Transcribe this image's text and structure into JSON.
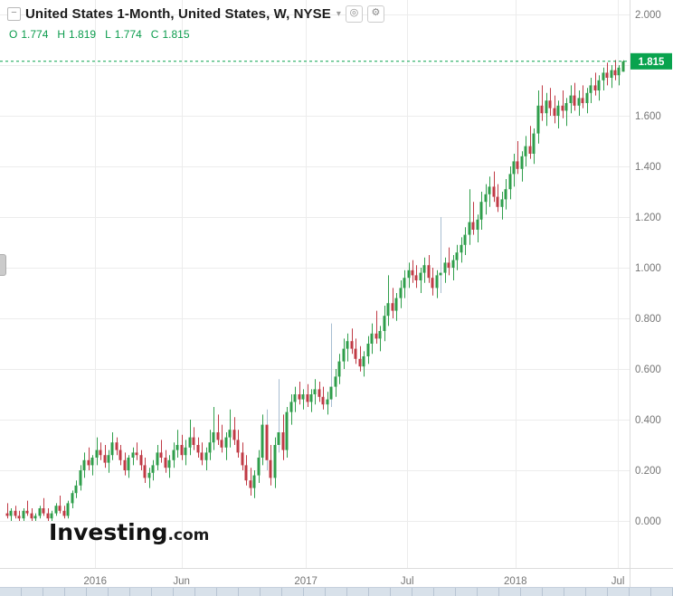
{
  "header": {
    "title": "United States 1-Month, United States, W, NYSE",
    "ohlc_summary": {
      "open_label": "O",
      "open": "1.774",
      "high_label": "H",
      "high": "1.819",
      "low_label": "L",
      "low": "1.774",
      "close_label": "C",
      "close": "1.815"
    }
  },
  "icons": {
    "collapse": "−",
    "dropdown": "▾",
    "visibility": "◎",
    "settings": "⚙"
  },
  "watermark": {
    "brand": "Investing",
    "suffix": ".com"
  },
  "chart_data": {
    "type": "candlestick",
    "symbol": "United States 1-Month",
    "country": "United States",
    "interval": "W",
    "exchange": "NYSE",
    "last_price": 1.815,
    "y_axis": {
      "min": 0.0,
      "max": 2.0,
      "step": 0.2,
      "visible_tick_labels": [
        "2.000",
        "1.600",
        "1.400",
        "1.200",
        "1.000",
        "0.800",
        "0.600",
        "0.400",
        "0.200",
        "0.000"
      ],
      "tick_values": [
        2.0,
        1.6,
        1.4,
        1.2,
        1.0,
        0.8,
        0.6,
        0.4,
        0.2,
        0.0
      ],
      "grid_values": [
        2.0,
        1.8,
        1.6,
        1.4,
        1.2,
        1.0,
        0.8,
        0.6,
        0.4,
        0.2,
        0.0
      ],
      "last_price_label": "1.815"
    },
    "x_axis": {
      "ticks": [
        {
          "label": "2016",
          "index": 21.7
        },
        {
          "label": "Jun",
          "index": 43.0
        },
        {
          "label": "2017",
          "index": 73.7
        },
        {
          "label": "Jul",
          "index": 98.7
        },
        {
          "label": "2018",
          "index": 125.4
        },
        {
          "label": "Jul",
          "index": 150.7
        }
      ]
    },
    "colors": {
      "up": "#2f9e4b",
      "down": "#c03a45",
      "pale_wick": "#a7bdd1",
      "last_price": "#09a34e",
      "grid": "#ececec",
      "axis_text": "#757575",
      "ohlc_text": "#0a9b4c"
    },
    "candles": [
      [
        0.03,
        0.07,
        0.01,
        0.02
      ],
      [
        0.02,
        0.05,
        0.0,
        0.04
      ],
      [
        0.04,
        0.06,
        0.01,
        0.02
      ],
      [
        0.02,
        0.04,
        0.0,
        0.01
      ],
      [
        0.01,
        0.05,
        0.0,
        0.04
      ],
      [
        0.04,
        0.08,
        0.02,
        0.03
      ],
      [
        0.03,
        0.05,
        0.0,
        0.01
      ],
      [
        0.01,
        0.03,
        0.0,
        0.02
      ],
      [
        0.02,
        0.06,
        0.01,
        0.05
      ],
      [
        0.05,
        0.09,
        0.02,
        0.03
      ],
      [
        0.03,
        0.05,
        0.0,
        0.01
      ],
      [
        0.01,
        0.04,
        0.0,
        0.03
      ],
      [
        0.03,
        0.07,
        0.02,
        0.06
      ],
      [
        0.06,
        0.1,
        0.03,
        0.04
      ],
      [
        0.04,
        0.06,
        0.01,
        0.02
      ],
      [
        0.02,
        0.08,
        0.01,
        0.07
      ],
      [
        0.07,
        0.12,
        0.05,
        0.11
      ],
      [
        0.11,
        0.16,
        0.09,
        0.14
      ],
      [
        0.14,
        0.22,
        0.12,
        0.2
      ],
      [
        0.2,
        0.27,
        0.17,
        0.24
      ],
      [
        0.24,
        0.29,
        0.2,
        0.22
      ],
      [
        0.22,
        0.26,
        0.18,
        0.25
      ],
      [
        0.25,
        0.33,
        0.22,
        0.28
      ],
      [
        0.28,
        0.31,
        0.24,
        0.26
      ],
      [
        0.26,
        0.3,
        0.21,
        0.23
      ],
      [
        0.23,
        0.28,
        0.19,
        0.26
      ],
      [
        0.26,
        0.35,
        0.24,
        0.31
      ],
      [
        0.31,
        0.33,
        0.26,
        0.28
      ],
      [
        0.28,
        0.3,
        0.22,
        0.24
      ],
      [
        0.24,
        0.27,
        0.18,
        0.2
      ],
      [
        0.2,
        0.26,
        0.17,
        0.25
      ],
      [
        0.25,
        0.29,
        0.22,
        0.27
      ],
      [
        0.27,
        0.31,
        0.24,
        0.26
      ],
      [
        0.26,
        0.28,
        0.2,
        0.22
      ],
      [
        0.22,
        0.25,
        0.15,
        0.17
      ],
      [
        0.17,
        0.21,
        0.13,
        0.19
      ],
      [
        0.19,
        0.24,
        0.16,
        0.22
      ],
      [
        0.22,
        0.3,
        0.2,
        0.27
      ],
      [
        0.27,
        0.32,
        0.23,
        0.25
      ],
      [
        0.25,
        0.28,
        0.19,
        0.21
      ],
      [
        0.21,
        0.26,
        0.17,
        0.24
      ],
      [
        0.24,
        0.31,
        0.21,
        0.28
      ],
      [
        0.28,
        0.36,
        0.25,
        0.3
      ],
      [
        0.3,
        0.34,
        0.24,
        0.26
      ],
      [
        0.26,
        0.32,
        0.22,
        0.29
      ],
      [
        0.29,
        0.4,
        0.26,
        0.33
      ],
      [
        0.33,
        0.37,
        0.28,
        0.3
      ],
      [
        0.3,
        0.33,
        0.25,
        0.27
      ],
      [
        0.27,
        0.31,
        0.22,
        0.24
      ],
      [
        0.24,
        0.29,
        0.2,
        0.27
      ],
      [
        0.27,
        0.36,
        0.24,
        0.31
      ],
      [
        0.31,
        0.45,
        0.28,
        0.35
      ],
      [
        0.35,
        0.42,
        0.3,
        0.32
      ],
      [
        0.32,
        0.38,
        0.27,
        0.29
      ],
      [
        0.29,
        0.35,
        0.24,
        0.33
      ],
      [
        0.33,
        0.44,
        0.29,
        0.36
      ],
      [
        0.36,
        0.41,
        0.3,
        0.32
      ],
      [
        0.32,
        0.36,
        0.25,
        0.27
      ],
      [
        0.27,
        0.31,
        0.2,
        0.22
      ],
      [
        0.22,
        0.26,
        0.14,
        0.16
      ],
      [
        0.16,
        0.21,
        0.1,
        0.13
      ],
      [
        0.13,
        0.2,
        0.09,
        0.18
      ],
      [
        0.18,
        0.28,
        0.15,
        0.25
      ],
      [
        0.25,
        0.42,
        0.22,
        0.38
      ],
      [
        0.38,
        0.44,
        0.2,
        0.24
      ],
      [
        0.24,
        0.3,
        0.14,
        0.17
      ],
      [
        0.17,
        0.33,
        0.13,
        0.3
      ],
      [
        0.3,
        0.56,
        0.27,
        0.35
      ],
      [
        0.35,
        0.42,
        0.24,
        0.28
      ],
      [
        0.28,
        0.45,
        0.25,
        0.43
      ],
      [
        0.43,
        0.5,
        0.38,
        0.47
      ],
      [
        0.47,
        0.53,
        0.43,
        0.5
      ],
      [
        0.5,
        0.55,
        0.46,
        0.48
      ],
      [
        0.48,
        0.52,
        0.44,
        0.5
      ],
      [
        0.5,
        0.54,
        0.45,
        0.47
      ],
      [
        0.47,
        0.52,
        0.43,
        0.5
      ],
      [
        0.5,
        0.56,
        0.46,
        0.52
      ],
      [
        0.52,
        0.55,
        0.47,
        0.49
      ],
      [
        0.49,
        0.53,
        0.44,
        0.46
      ],
      [
        0.46,
        0.51,
        0.42,
        0.48
      ],
      [
        0.48,
        0.78,
        0.45,
        0.53
      ],
      [
        0.53,
        0.6,
        0.49,
        0.57
      ],
      [
        0.57,
        0.66,
        0.54,
        0.63
      ],
      [
        0.63,
        0.72,
        0.6,
        0.68
      ],
      [
        0.68,
        0.74,
        0.63,
        0.71
      ],
      [
        0.71,
        0.76,
        0.66,
        0.68
      ],
      [
        0.68,
        0.72,
        0.62,
        0.64
      ],
      [
        0.64,
        0.69,
        0.59,
        0.61
      ],
      [
        0.61,
        0.67,
        0.57,
        0.65
      ],
      [
        0.65,
        0.73,
        0.62,
        0.7
      ],
      [
        0.7,
        0.78,
        0.66,
        0.74
      ],
      [
        0.74,
        0.83,
        0.7,
        0.72
      ],
      [
        0.72,
        0.77,
        0.67,
        0.75
      ],
      [
        0.75,
        0.85,
        0.71,
        0.81
      ],
      [
        0.81,
        0.97,
        0.77,
        0.86
      ],
      [
        0.86,
        0.92,
        0.8,
        0.83
      ],
      [
        0.83,
        0.9,
        0.79,
        0.88
      ],
      [
        0.88,
        0.95,
        0.84,
        0.92
      ],
      [
        0.92,
        0.99,
        0.88,
        0.96
      ],
      [
        0.96,
        1.02,
        0.92,
        0.99
      ],
      [
        0.99,
        1.03,
        0.94,
        0.97
      ],
      [
        0.97,
        1.01,
        0.92,
        0.95
      ],
      [
        0.95,
        1.0,
        0.9,
        0.98
      ],
      [
        0.98,
        1.04,
        0.94,
        1.01
      ],
      [
        1.01,
        1.05,
        0.94,
        0.96
      ],
      [
        0.96,
        1.0,
        0.89,
        0.92
      ],
      [
        0.92,
        0.99,
        0.88,
        0.97
      ],
      [
        0.97,
        1.2,
        0.9,
        0.98
      ],
      [
        0.98,
        1.04,
        0.94,
        1.02
      ],
      [
        1.02,
        1.08,
        0.97,
        1.0
      ],
      [
        1.0,
        1.05,
        0.95,
        1.03
      ],
      [
        1.03,
        1.09,
        0.99,
        1.06
      ],
      [
        1.06,
        1.12,
        1.02,
        1.09
      ],
      [
        1.09,
        1.16,
        1.05,
        1.13
      ],
      [
        1.13,
        1.31,
        1.09,
        1.18
      ],
      [
        1.18,
        1.26,
        1.13,
        1.15
      ],
      [
        1.15,
        1.21,
        1.1,
        1.19
      ],
      [
        1.19,
        1.3,
        1.15,
        1.26
      ],
      [
        1.26,
        1.33,
        1.21,
        1.29
      ],
      [
        1.29,
        1.36,
        1.24,
        1.32
      ],
      [
        1.32,
        1.38,
        1.26,
        1.28
      ],
      [
        1.28,
        1.33,
        1.22,
        1.24
      ],
      [
        1.24,
        1.3,
        1.19,
        1.27
      ],
      [
        1.27,
        1.35,
        1.23,
        1.31
      ],
      [
        1.31,
        1.4,
        1.27,
        1.37
      ],
      [
        1.37,
        1.45,
        1.32,
        1.42
      ],
      [
        1.42,
        1.5,
        1.37,
        1.39
      ],
      [
        1.39,
        1.46,
        1.34,
        1.44
      ],
      [
        1.44,
        1.52,
        1.4,
        1.48
      ],
      [
        1.48,
        1.56,
        1.43,
        1.45
      ],
      [
        1.45,
        1.55,
        1.41,
        1.53
      ],
      [
        1.53,
        1.7,
        1.49,
        1.64
      ],
      [
        1.64,
        1.72,
        1.58,
        1.61
      ],
      [
        1.61,
        1.69,
        1.56,
        1.66
      ],
      [
        1.66,
        1.71,
        1.6,
        1.63
      ],
      [
        1.63,
        1.68,
        1.57,
        1.6
      ],
      [
        1.6,
        1.66,
        1.55,
        1.64
      ],
      [
        1.64,
        1.7,
        1.59,
        1.62
      ],
      [
        1.62,
        1.67,
        1.56,
        1.65
      ],
      [
        1.65,
        1.72,
        1.61,
        1.68
      ],
      [
        1.68,
        1.73,
        1.62,
        1.64
      ],
      [
        1.64,
        1.7,
        1.6,
        1.67
      ],
      [
        1.67,
        1.72,
        1.63,
        1.65
      ],
      [
        1.65,
        1.71,
        1.61,
        1.69
      ],
      [
        1.69,
        1.75,
        1.65,
        1.72
      ],
      [
        1.72,
        1.77,
        1.68,
        1.7
      ],
      [
        1.7,
        1.76,
        1.66,
        1.74
      ],
      [
        1.74,
        1.79,
        1.7,
        1.77
      ],
      [
        1.77,
        1.81,
        1.72,
        1.75
      ],
      [
        1.75,
        1.8,
        1.71,
        1.78
      ],
      [
        1.78,
        1.82,
        1.74,
        1.76
      ],
      [
        1.76,
        1.8,
        1.72,
        1.79
      ],
      [
        1.774,
        1.819,
        1.774,
        1.815
      ]
    ]
  }
}
